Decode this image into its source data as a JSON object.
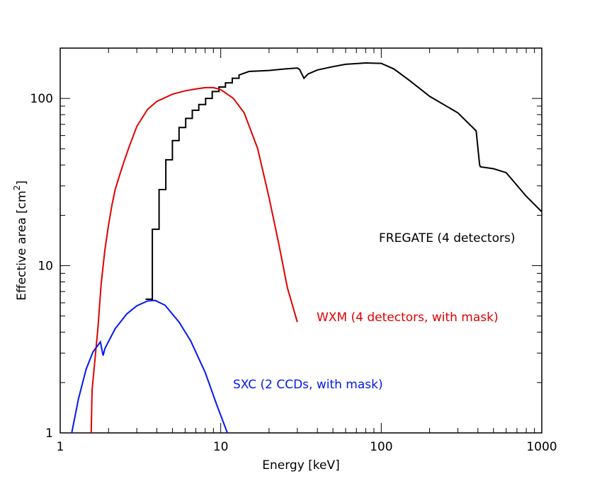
{
  "chart_data": {
    "type": "line",
    "xlabel": "Energy [keV]",
    "ylabel_prefix": "Effective area [cm",
    "ylabel_sup": "2",
    "ylabel_suffix": "]",
    "xscale": "log",
    "yscale": "log",
    "xlim": [
      1,
      1000
    ],
    "ylim": [
      1,
      200
    ],
    "grid": false,
    "x_ticks": [
      {
        "value": 1,
        "label": "1"
      },
      {
        "value": 10,
        "label": "10"
      },
      {
        "value": 100,
        "label": "100"
      },
      {
        "value": 1000,
        "label": "1000"
      }
    ],
    "y_ticks": [
      {
        "value": 1,
        "label": "1"
      },
      {
        "value": 10,
        "label": "10"
      },
      {
        "value": 100,
        "label": "100"
      }
    ],
    "series": [
      {
        "name": "FREGATE (4 detectors)",
        "color": "#000000",
        "x": [
          3.4,
          3.75,
          3.75,
          4.13,
          4.13,
          4.55,
          4.55,
          5.0,
          5.0,
          5.5,
          5.5,
          6.05,
          6.05,
          6.65,
          6.65,
          7.3,
          7.3,
          8.05,
          8.05,
          8.85,
          8.85,
          9.75,
          9.75,
          10.7,
          10.7,
          11.8,
          11.8,
          13.0,
          13.0,
          15,
          20,
          25,
          30,
          31,
          33,
          35,
          40,
          50,
          60,
          80,
          100,
          120,
          150,
          200,
          300,
          390,
          410,
          415,
          500,
          600,
          800,
          1000
        ],
        "y": [
          6.3,
          6.3,
          16.5,
          16.5,
          28.5,
          28.5,
          43,
          43,
          56,
          56,
          67,
          67,
          76,
          76,
          85,
          85,
          92,
          92,
          100,
          100,
          110,
          110,
          117,
          117,
          124,
          124,
          132,
          132,
          138,
          145,
          147,
          150,
          152,
          149,
          132,
          140,
          148,
          155,
          160,
          163,
          162,
          150,
          128,
          103,
          82,
          64,
          40,
          39,
          38,
          36,
          26,
          21
        ]
      },
      {
        "name": "WXM (4 detectors, with mask)",
        "color": "#e00000",
        "x": [
          1.56,
          1.58,
          1.65,
          1.72,
          1.8,
          1.9,
          2.0,
          2.1,
          2.2,
          2.35,
          2.5,
          2.7,
          3.0,
          3.5,
          4,
          5,
          6,
          7,
          8,
          9,
          10,
          12,
          14,
          17,
          20,
          23,
          26,
          30
        ],
        "y": [
          1.0,
          1.8,
          2.8,
          4.3,
          7.8,
          12.5,
          17.5,
          23,
          28.5,
          35,
          42,
          52,
          68,
          86,
          96,
          106,
          111,
          114,
          116,
          116,
          113,
          100,
          82,
          50,
          25.5,
          13.5,
          7.4,
          4.6
        ]
      },
      {
        "name": "SXC (2 CCDs, with mask)",
        "color": "#0018ee",
        "x": [
          1.18,
          1.3,
          1.45,
          1.6,
          1.78,
          1.85,
          1.9,
          2.2,
          2.6,
          3.0,
          3.5,
          3.9,
          4.5,
          5.5,
          6.5,
          8,
          9.5,
          11
        ],
        "y": [
          1.0,
          1.6,
          2.4,
          3.05,
          3.5,
          2.9,
          3.2,
          4.2,
          5.15,
          5.75,
          6.15,
          6.2,
          5.8,
          4.6,
          3.55,
          2.3,
          1.45,
          1.0
        ]
      }
    ]
  }
}
